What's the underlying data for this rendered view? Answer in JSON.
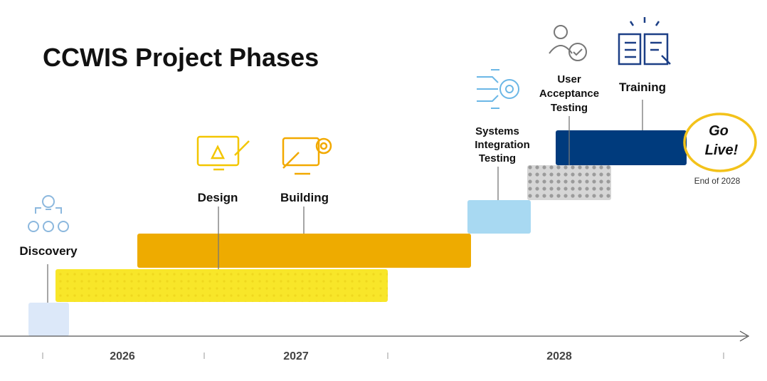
{
  "title": "CCWIS Project Phases",
  "phases": [
    {
      "label": [
        "Discovery"
      ]
    },
    {
      "label": [
        "Design"
      ]
    },
    {
      "label": [
        "Building"
      ]
    },
    {
      "label": [
        "Systems",
        "Integration",
        "Testing"
      ]
    },
    {
      "label": [
        "User",
        "Acceptance",
        "Testing"
      ]
    },
    {
      "label": [
        "Training"
      ]
    }
  ],
  "milestone": {
    "label": [
      "Go",
      "Live!"
    ],
    "note": "End of 2028"
  },
  "years": [
    "2026",
    "2027",
    "2028"
  ]
}
